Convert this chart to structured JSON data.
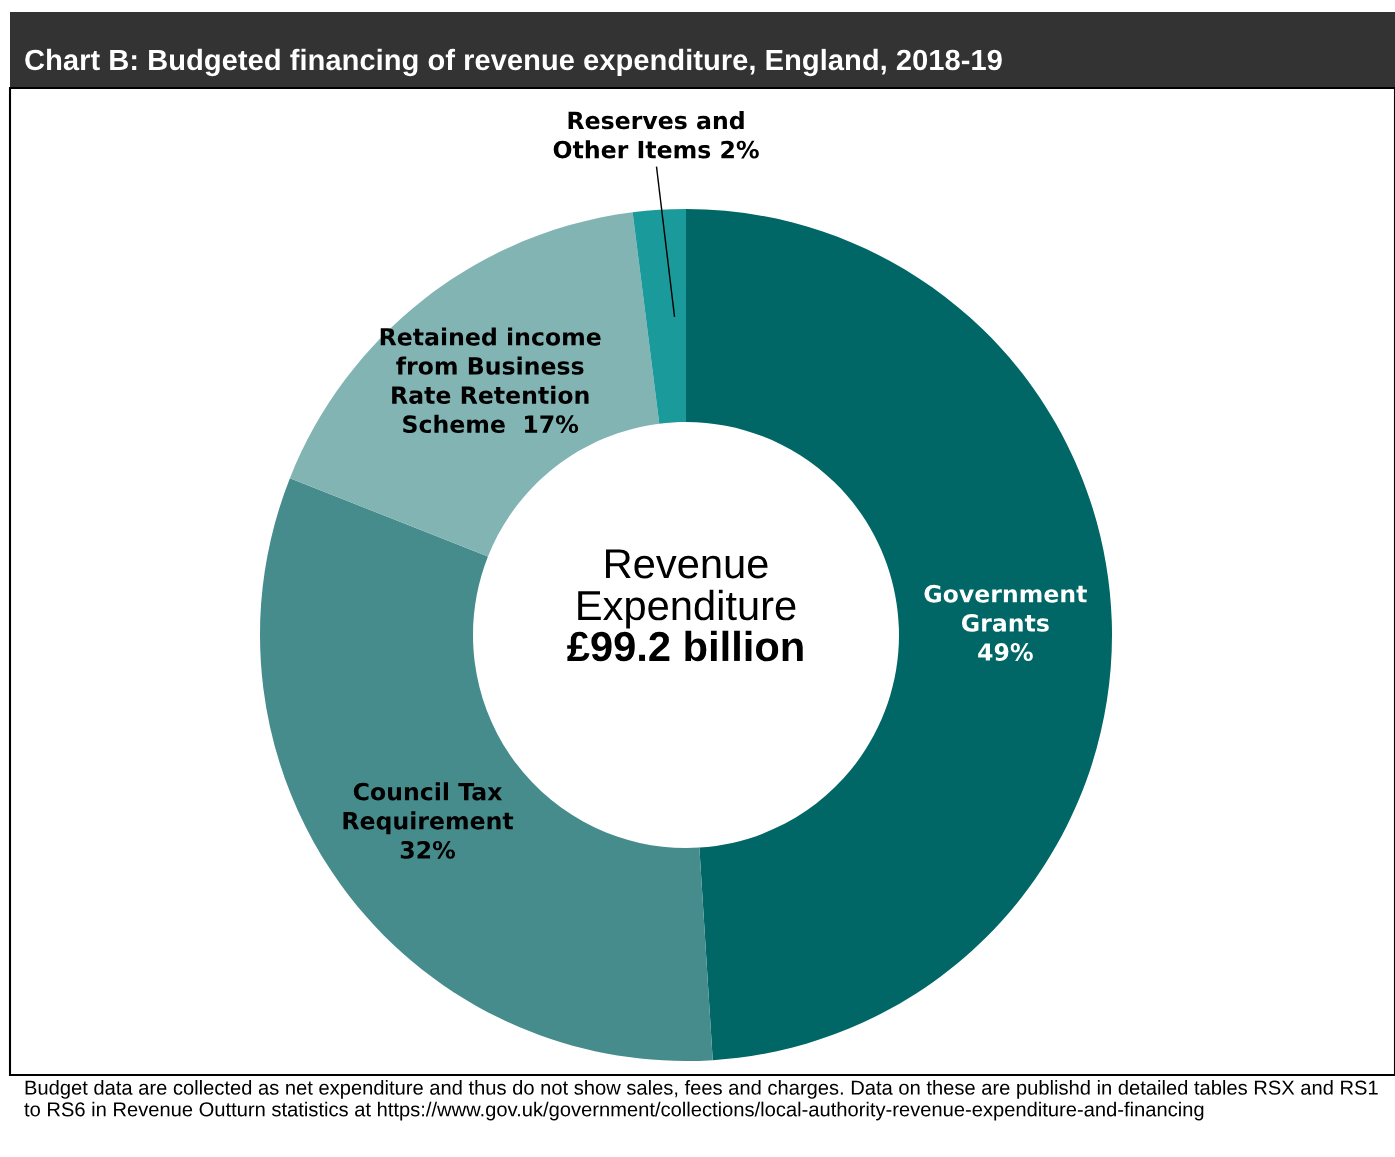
{
  "chart_data": {
    "type": "donut",
    "title": "Chart B: Budgeted financing of revenue expenditure, England, 2018-19",
    "categories": [
      "Government\nGrants\n",
      "Council Tax\nRequirement\n",
      "Retained income\nfrom Business\nRate Retention\nScheme  ",
      "Reserves and\nOther Items "
    ],
    "values": [
      49,
      32,
      17,
      2
    ],
    "value_labels": [
      "49%",
      "32%",
      "17%",
      "2%"
    ],
    "colors": [
      "#006666",
      "#468c8c",
      "#82b4b4",
      "#1a9a9a"
    ],
    "annotations": [
      "Revenue\nExpenditure",
      "£99.2 billion",
      "Budget data are collected as net expenditure and thus do not show sales, fees and charges. Data on these are publishd in detailed tables RSX and RS1 to RS6 in Revenue Outturn statistics at https://www.gov.uk/government/collections/local-authority-revenue-expenditure-and-financing"
    ],
    "legend": false
  }
}
